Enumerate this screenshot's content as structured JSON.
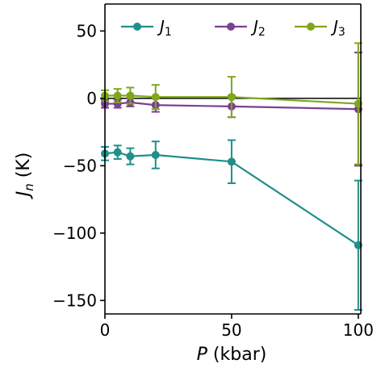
{
  "chart_data": {
    "type": "line",
    "x": [
      0,
      5,
      10,
      20,
      50,
      100
    ],
    "xlabel_symbol": "P",
    "xlabel_unit": " (kbar)",
    "ylabel_symbol": "J",
    "ylabel_subscript": "n",
    "ylabel_unit": " (K)",
    "xlim": [
      0,
      101
    ],
    "ylim": [
      -160,
      70
    ],
    "xticks": [
      0,
      50,
      100
    ],
    "yticks": [
      50,
      0,
      -50,
      -100,
      -150
    ],
    "ytick_labels": [
      "50",
      "0",
      "−50",
      "−100",
      "−150"
    ],
    "reference_line_y": 0,
    "grid": false,
    "legend_position": "top",
    "series": [
      {
        "name_symbol": "J",
        "name_subscript": "1",
        "color": "#1f8f8a",
        "values": [
          -41,
          -40,
          -43,
          -42,
          -47,
          -109
        ],
        "errors": [
          5,
          5,
          6,
          10,
          16,
          48
        ]
      },
      {
        "name_symbol": "J",
        "name_subscript": "2",
        "color": "#7b3f93",
        "values": [
          -4,
          -4,
          -3,
          -5,
          -6,
          -8
        ],
        "errors": [
          3,
          3,
          3,
          5,
          8,
          42
        ]
      },
      {
        "name_symbol": "J",
        "name_subscript": "3",
        "color": "#7fa61c",
        "values": [
          2,
          2,
          2,
          1,
          1,
          -4
        ],
        "errors": [
          4,
          5,
          6,
          9,
          15,
          45
        ]
      }
    ]
  }
}
